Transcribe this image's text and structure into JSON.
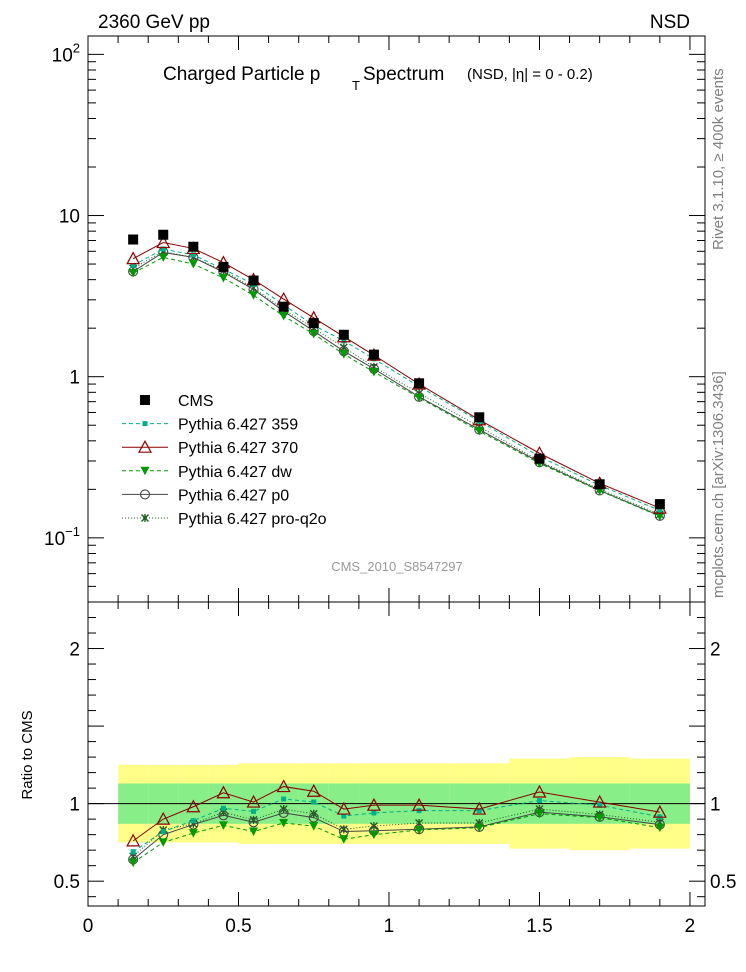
{
  "header": {
    "left": "2360 GeV pp",
    "right": "NSD"
  },
  "side_label_top": "Rivet 3.1.10, ≥ 400k events",
  "side_label_bottom": "mcplots.cern.ch [arXiv:1306.3436]",
  "analysis_id": "CMS_2010_S8547297",
  "title": {
    "main": "Charged Particle p",
    "sub": "T",
    "main2": " Spectrum",
    "cut": "(NSD, |η| =   0 - 0.2)"
  },
  "ratio_ylabel": "Ratio to CMS",
  "colors": {
    "data": "#000000",
    "p359": "#00b08a",
    "p370": "#8b0000",
    "dw": "#009900",
    "p0": "#444444",
    "q2o": "#1f5f1f",
    "band_inner": "#88ee88",
    "band_outer": "#ffff88"
  },
  "chart_data": [
    {
      "type": "scatter",
      "panel": "main",
      "yscale": "log",
      "xlim": [
        0,
        2.05
      ],
      "ylim": [
        0.04,
        130
      ],
      "x_ticks": [
        0,
        0.5,
        1,
        1.5,
        2
      ],
      "y_tick_labels": [
        "10^-1",
        "1",
        "10",
        "10^2"
      ],
      "x": [
        0.15,
        0.25,
        0.35,
        0.45,
        0.55,
        0.65,
        0.75,
        0.85,
        0.95,
        1.1,
        1.3,
        1.5,
        1.7,
        1.9
      ],
      "series": [
        {
          "name": "CMS",
          "key": "data",
          "values": [
            7.1,
            7.6,
            6.4,
            4.8,
            3.95,
            2.72,
            2.15,
            1.82,
            1.37,
            0.91,
            0.56,
            0.31,
            0.215,
            0.162
          ]
        },
        {
          "name": "Pythia 6.427 359",
          "key": "p359",
          "values": [
            4.9,
            6.2,
            5.7,
            4.65,
            3.75,
            2.79,
            2.08,
            1.67,
            1.29,
            0.87,
            0.53,
            0.32,
            0.212,
            0.148
          ]
        },
        {
          "name": "Pythia 6.427 370",
          "key": "p370",
          "values": [
            5.4,
            6.8,
            6.25,
            5.1,
            4.0,
            3.03,
            2.32,
            1.77,
            1.36,
            0.9,
            0.54,
            0.335,
            0.218,
            0.153
          ]
        },
        {
          "name": "Pythia 6.427 dw",
          "key": "dw",
          "values": [
            4.4,
            5.5,
            5.0,
            4.1,
            3.2,
            2.38,
            1.84,
            1.38,
            1.07,
            0.74,
            0.46,
            0.29,
            0.196,
            0.136
          ]
        },
        {
          "name": "Pythia 6.427 p0",
          "key": "p0",
          "values": [
            4.5,
            5.9,
            5.5,
            4.45,
            3.48,
            2.55,
            1.92,
            1.44,
            1.12,
            0.75,
            0.47,
            0.295,
            0.197,
            0.137
          ]
        },
        {
          "name": "Pythia 6.427 pro-q2o",
          "key": "q2o",
          "values": [
            4.7,
            6.0,
            5.5,
            4.55,
            3.55,
            2.62,
            2.0,
            1.52,
            1.15,
            0.79,
            0.49,
            0.3,
            0.2,
            0.14
          ]
        }
      ],
      "legend": "middle-left"
    },
    {
      "type": "line",
      "panel": "ratio",
      "ylabel": "Ratio to CMS",
      "xlim": [
        0,
        2.05
      ],
      "ylim": [
        0.34,
        2.3
      ],
      "x_ticks": [
        0,
        0.5,
        1,
        1.5,
        2
      ],
      "y_ticks": [
        0.5,
        1,
        2
      ],
      "x": [
        0.15,
        0.25,
        0.35,
        0.45,
        0.55,
        0.65,
        0.75,
        0.85,
        0.95,
        1.1,
        1.3,
        1.5,
        1.7,
        1.9
      ],
      "bin_edges": [
        0.1,
        0.2,
        0.3,
        0.4,
        0.5,
        0.6,
        0.7,
        0.8,
        0.9,
        1.0,
        1.2,
        1.4,
        1.6,
        1.8,
        2.0
      ],
      "band_inner": [
        0.13,
        0.13,
        0.13,
        0.13,
        0.13,
        0.13,
        0.13,
        0.13,
        0.13,
        0.13,
        0.13,
        0.13,
        0.13,
        0.13
      ],
      "band_outer": [
        0.12,
        0.12,
        0.12,
        0.12,
        0.13,
        0.13,
        0.13,
        0.13,
        0.13,
        0.13,
        0.13,
        0.16,
        0.17,
        0.16
      ],
      "series": [
        {
          "name": "Pythia 6.427 359",
          "key": "p359",
          "values": [
            0.69,
            0.82,
            0.89,
            0.97,
            0.95,
            1.03,
            1.01,
            0.92,
            0.94,
            0.955,
            0.955,
            1.02,
            0.99,
            0.915
          ]
        },
        {
          "name": "Pythia 6.427 370",
          "key": "p370",
          "values": [
            0.76,
            0.9,
            0.98,
            1.07,
            1.01,
            1.11,
            1.08,
            0.965,
            0.99,
            0.99,
            0.965,
            1.075,
            1.01,
            0.945
          ]
        },
        {
          "name": "Pythia 6.427 dw",
          "key": "dw",
          "values": [
            0.62,
            0.75,
            0.81,
            0.86,
            0.82,
            0.875,
            0.855,
            0.77,
            0.8,
            0.83,
            0.845,
            0.935,
            0.91,
            0.845
          ]
        },
        {
          "name": "Pythia 6.427 p0",
          "key": "p0",
          "values": [
            0.64,
            0.8,
            0.865,
            0.925,
            0.88,
            0.94,
            0.91,
            0.82,
            0.825,
            0.835,
            0.85,
            0.945,
            0.915,
            0.865
          ]
        },
        {
          "name": "Pythia 6.427 pro-q2o",
          "key": "q2o",
          "values": [
            0.66,
            0.83,
            0.87,
            0.945,
            0.895,
            0.965,
            0.935,
            0.835,
            0.855,
            0.875,
            0.875,
            0.965,
            0.93,
            0.88
          ]
        }
      ]
    }
  ]
}
